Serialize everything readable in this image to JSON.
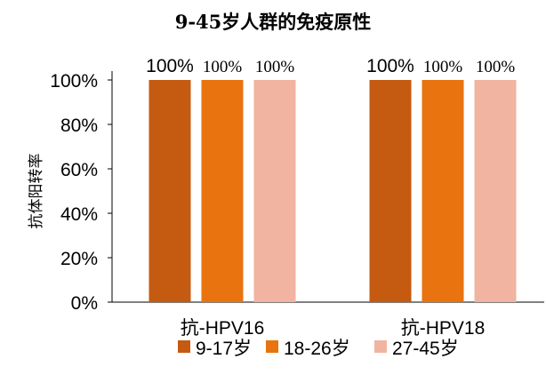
{
  "chart_data": {
    "type": "bar",
    "title": "9-45岁人群的免疫原性",
    "ylabel": "抗体阳转率",
    "xlabel": "",
    "categories": [
      "抗-HPV16",
      "抗-HPV18"
    ],
    "series": [
      {
        "name": "9-17岁",
        "values": [
          100,
          100
        ],
        "color": "#C55A11"
      },
      {
        "name": "18-26岁",
        "values": [
          100,
          100
        ],
        "color": "#E8730F"
      },
      {
        "name": "27-45岁",
        "values": [
          100,
          100
        ],
        "color": "#F0B4A0"
      }
    ],
    "data_labels": [
      [
        "100%",
        "100%"
      ],
      [
        "100%",
        "100%"
      ],
      [
        "100%",
        "100%"
      ]
    ],
    "yticks": [
      "0%",
      "20%",
      "40%",
      "60%",
      "80%",
      "100%"
    ],
    "ylim": [
      0,
      100
    ],
    "grid": false,
    "legend_position": "bottom"
  }
}
